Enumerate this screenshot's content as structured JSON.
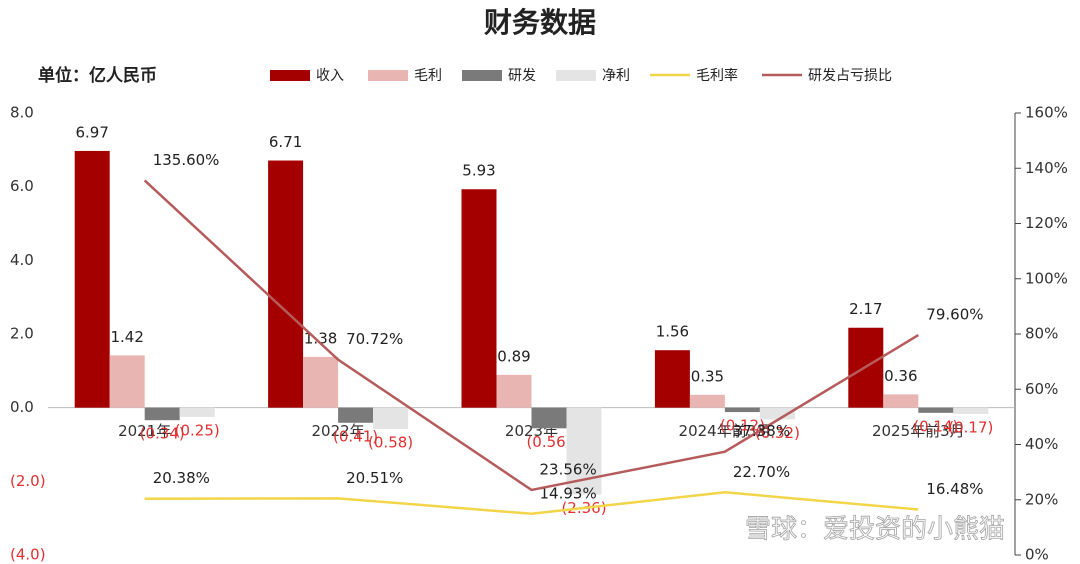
{
  "chart_data": {
    "type": "bar_line",
    "title": "财务数据",
    "unit_label": "单位：亿人民币",
    "watermark": "雪球：爱投资的小熊猫",
    "categories": [
      "2021年",
      "2022年",
      "2023年",
      "2024年前3月",
      "2025年前3月"
    ],
    "series": [
      {
        "name": "收入",
        "type": "bar",
        "color": "#a50000",
        "values": [
          6.97,
          6.71,
          5.93,
          1.56,
          2.17
        ]
      },
      {
        "name": "毛利",
        "type": "bar",
        "color": "#e9b5b3",
        "values": [
          1.42,
          1.38,
          0.89,
          0.35,
          0.36
        ]
      },
      {
        "name": "研发",
        "type": "bar",
        "color": "#7a7a7a",
        "values": [
          -0.34,
          -0.41,
          -0.56,
          -0.12,
          -0.14
        ],
        "value_labels": [
          "(0.34)",
          "(0.41)",
          "(0.56)",
          "(0.12)",
          "(0.14)"
        ]
      },
      {
        "name": "净利",
        "type": "bar",
        "color": "#e4e4e4",
        "values": [
          -0.25,
          -0.58,
          -2.36,
          -0.32,
          -0.17
        ],
        "value_labels": [
          "(0.25)",
          "(0.58)",
          "(2.36)",
          "(0.32)",
          "(0.17)"
        ]
      },
      {
        "name": "毛利率",
        "type": "line",
        "axis": "y2",
        "color": "#f3d54a",
        "values": [
          20.38,
          20.51,
          14.93,
          22.7,
          16.48
        ],
        "value_labels": [
          "20.38%",
          "20.51%",
          "14.93%",
          "22.70%",
          "16.48%"
        ]
      },
      {
        "name": "研发占亏损比",
        "type": "line",
        "axis": "y2",
        "color": "#b65b5b",
        "values": [
          135.6,
          70.72,
          23.56,
          37.38,
          79.6
        ],
        "value_labels": [
          "135.60%",
          "70.72%",
          "23.56%",
          "37.38%",
          "79.60%"
        ]
      }
    ],
    "ylim": [
      -4,
      8
    ],
    "yticks": [
      {
        "value": -4,
        "label": "(4.0)"
      },
      {
        "value": -2,
        "label": "(2.0)"
      },
      {
        "value": 0,
        "label": "0.0"
      },
      {
        "value": 2,
        "label": "2.0"
      },
      {
        "value": 4,
        "label": "4.0"
      },
      {
        "value": 6,
        "label": "6.0"
      },
      {
        "value": 8,
        "label": "8.0"
      }
    ],
    "y2lim": [
      0,
      160
    ],
    "y2ticks": [
      {
        "value": 0,
        "label": "0%"
      },
      {
        "value": 20,
        "label": "20%"
      },
      {
        "value": 40,
        "label": "40%"
      },
      {
        "value": 60,
        "label": "60%"
      },
      {
        "value": 80,
        "label": "80%"
      },
      {
        "value": 100,
        "label": "100%"
      },
      {
        "value": 120,
        "label": "120%"
      },
      {
        "value": 140,
        "label": "140%"
      },
      {
        "value": 160,
        "label": "160%"
      }
    ]
  }
}
